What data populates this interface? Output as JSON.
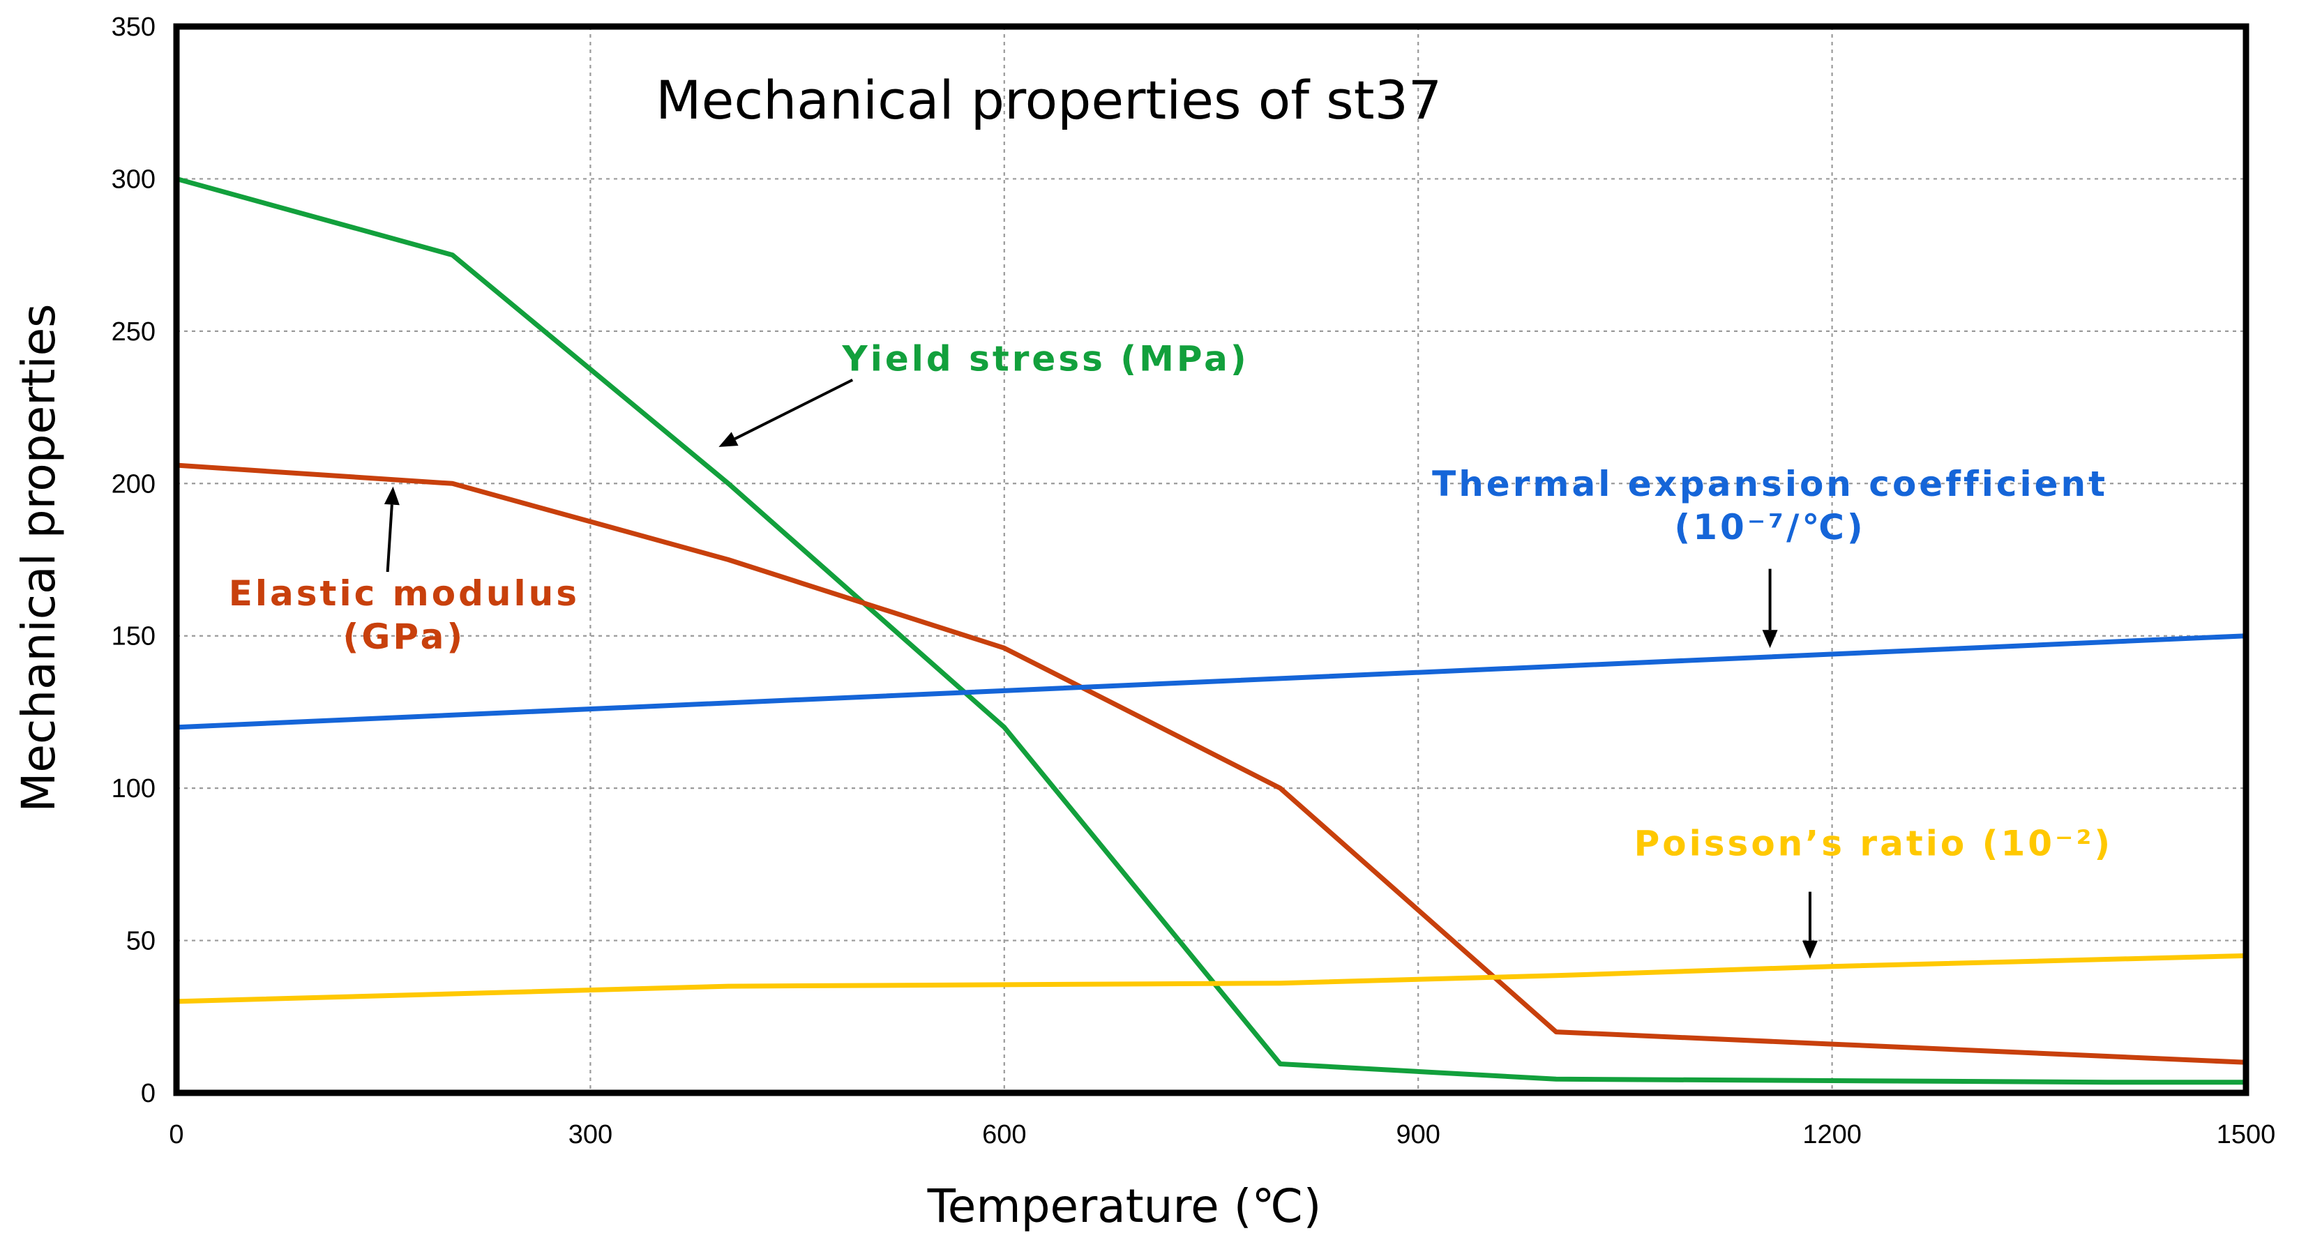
{
  "chart_data": {
    "type": "line",
    "title": "Mechanical properties of st37",
    "xlabel": "Temperature (℃)",
    "ylabel": "Mechanical properties",
    "xlim": [
      0,
      1500
    ],
    "ylim": [
      0,
      350
    ],
    "xticks": [
      0,
      300,
      600,
      900,
      1200,
      1500
    ],
    "yticks": [
      0,
      50,
      100,
      150,
      200,
      250,
      300,
      350
    ],
    "grid": true,
    "series": [
      {
        "name": "Yield stress (MPa)",
        "label_lines": [
          "Yield stress (MPa)"
        ],
        "color": "#12a03c",
        "points": [
          [
            0,
            300
          ],
          [
            200,
            275
          ],
          [
            400,
            200
          ],
          [
            600,
            120
          ],
          [
            800,
            9.5
          ],
          [
            1000,
            4.5
          ],
          [
            1200,
            4
          ],
          [
            1400,
            3.5
          ],
          [
            1500,
            3.5
          ]
        ]
      },
      {
        "name": "Elastic modulus (GPa)",
        "label_lines": [
          "Elastic modulus",
          "(GPa)"
        ],
        "color": "#c8400c",
        "points": [
          [
            0,
            206
          ],
          [
            200,
            200
          ],
          [
            400,
            175
          ],
          [
            600,
            146
          ],
          [
            800,
            100
          ],
          [
            1000,
            20
          ],
          [
            1200,
            16
          ],
          [
            1500,
            10
          ]
        ]
      },
      {
        "name": "Thermal expansion coefficient (10⁻⁷/℃)",
        "label_lines": [
          "Thermal expansion coefficient",
          "(10⁻⁷/℃)"
        ],
        "color": "#1565d8",
        "points": [
          [
            0,
            120
          ],
          [
            1500,
            150
          ]
        ]
      },
      {
        "name": "Poisson's ratio (10⁻²)",
        "label_lines": [
          "Poisson’s ratio (10⁻²)"
        ],
        "color": "#ffc800",
        "points": [
          [
            0,
            30
          ],
          [
            200,
            32.5
          ],
          [
            400,
            35
          ],
          [
            600,
            35.5
          ],
          [
            800,
            36
          ],
          [
            1000,
            38.5
          ],
          [
            1200,
            41.5
          ],
          [
            1500,
            45
          ]
        ]
      }
    ],
    "annotations": [
      {
        "series": "Yield stress (MPa)",
        "arrow_from": [
          490,
          234
        ],
        "arrow_to": [
          393,
          212
        ],
        "label_at": [
          630,
          237
        ]
      },
      {
        "series": "Elastic modulus (GPa)",
        "arrow_from": [
          153,
          171
        ],
        "arrow_to": [
          157,
          199
        ],
        "label_at": [
          165,
          160
        ]
      },
      {
        "series": "Thermal expansion coefficient (10⁻⁷/℃)",
        "arrow_from": [
          1155,
          172
        ],
        "arrow_to": [
          1155,
          146
        ],
        "label_at": [
          1155,
          196
        ]
      },
      {
        "series": "Poisson's ratio (10⁻²)",
        "arrow_from": [
          1184,
          66
        ],
        "arrow_to": [
          1184,
          44
        ],
        "label_at": [
          1230,
          78
        ]
      }
    ]
  }
}
